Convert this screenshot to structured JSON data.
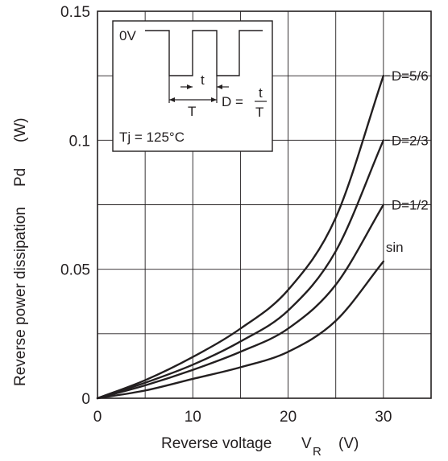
{
  "chart_data": {
    "type": "line",
    "xlabel": "Reverse voltage",
    "xlabel_symbol": "V",
    "xlabel_subscript": "R",
    "xlabel_unit": "(V)",
    "ylabel": "Reverse power dissipation",
    "ylabel_symbol": "Pd",
    "ylabel_unit": "(W)",
    "xlim": [
      0,
      35
    ],
    "ylim": [
      0,
      0.15
    ],
    "xticks": [
      0,
      10,
      20,
      30
    ],
    "xtick_labels": [
      "0",
      "10",
      "20",
      "30"
    ],
    "yticks": [
      0,
      0.05,
      0.1,
      0.15
    ],
    "ytick_labels": [
      "0",
      "0.05",
      "0.1",
      "0.15"
    ],
    "grid": true,
    "x_grid_step": 5,
    "y_grid_step": 0.025,
    "series": [
      {
        "name": "D=5/6",
        "x": [
          0,
          5,
          10,
          15,
          20,
          25,
          30
        ],
        "y": [
          0,
          0.007,
          0.016,
          0.027,
          0.042,
          0.07,
          0.125
        ]
      },
      {
        "name": "D=2/3",
        "x": [
          0,
          5,
          10,
          15,
          20,
          25,
          30
        ],
        "y": [
          0,
          0.006,
          0.013,
          0.022,
          0.034,
          0.057,
          0.1
        ]
      },
      {
        "name": "D=1/2",
        "x": [
          0,
          5,
          10,
          15,
          20,
          25,
          30
        ],
        "y": [
          0,
          0.005,
          0.011,
          0.018,
          0.027,
          0.044,
          0.075
        ]
      },
      {
        "name": "sin",
        "x": [
          0,
          5,
          10,
          15,
          20,
          25,
          30
        ],
        "y": [
          0,
          0.003,
          0.0075,
          0.012,
          0.018,
          0.03,
          0.053
        ]
      }
    ],
    "inset": {
      "level_label": "0V",
      "t_label": "t",
      "T_label": "T",
      "formula_lhs": "D =",
      "formula_num": "t",
      "formula_den": "T",
      "temperature": "Tj = 125°C"
    }
  }
}
